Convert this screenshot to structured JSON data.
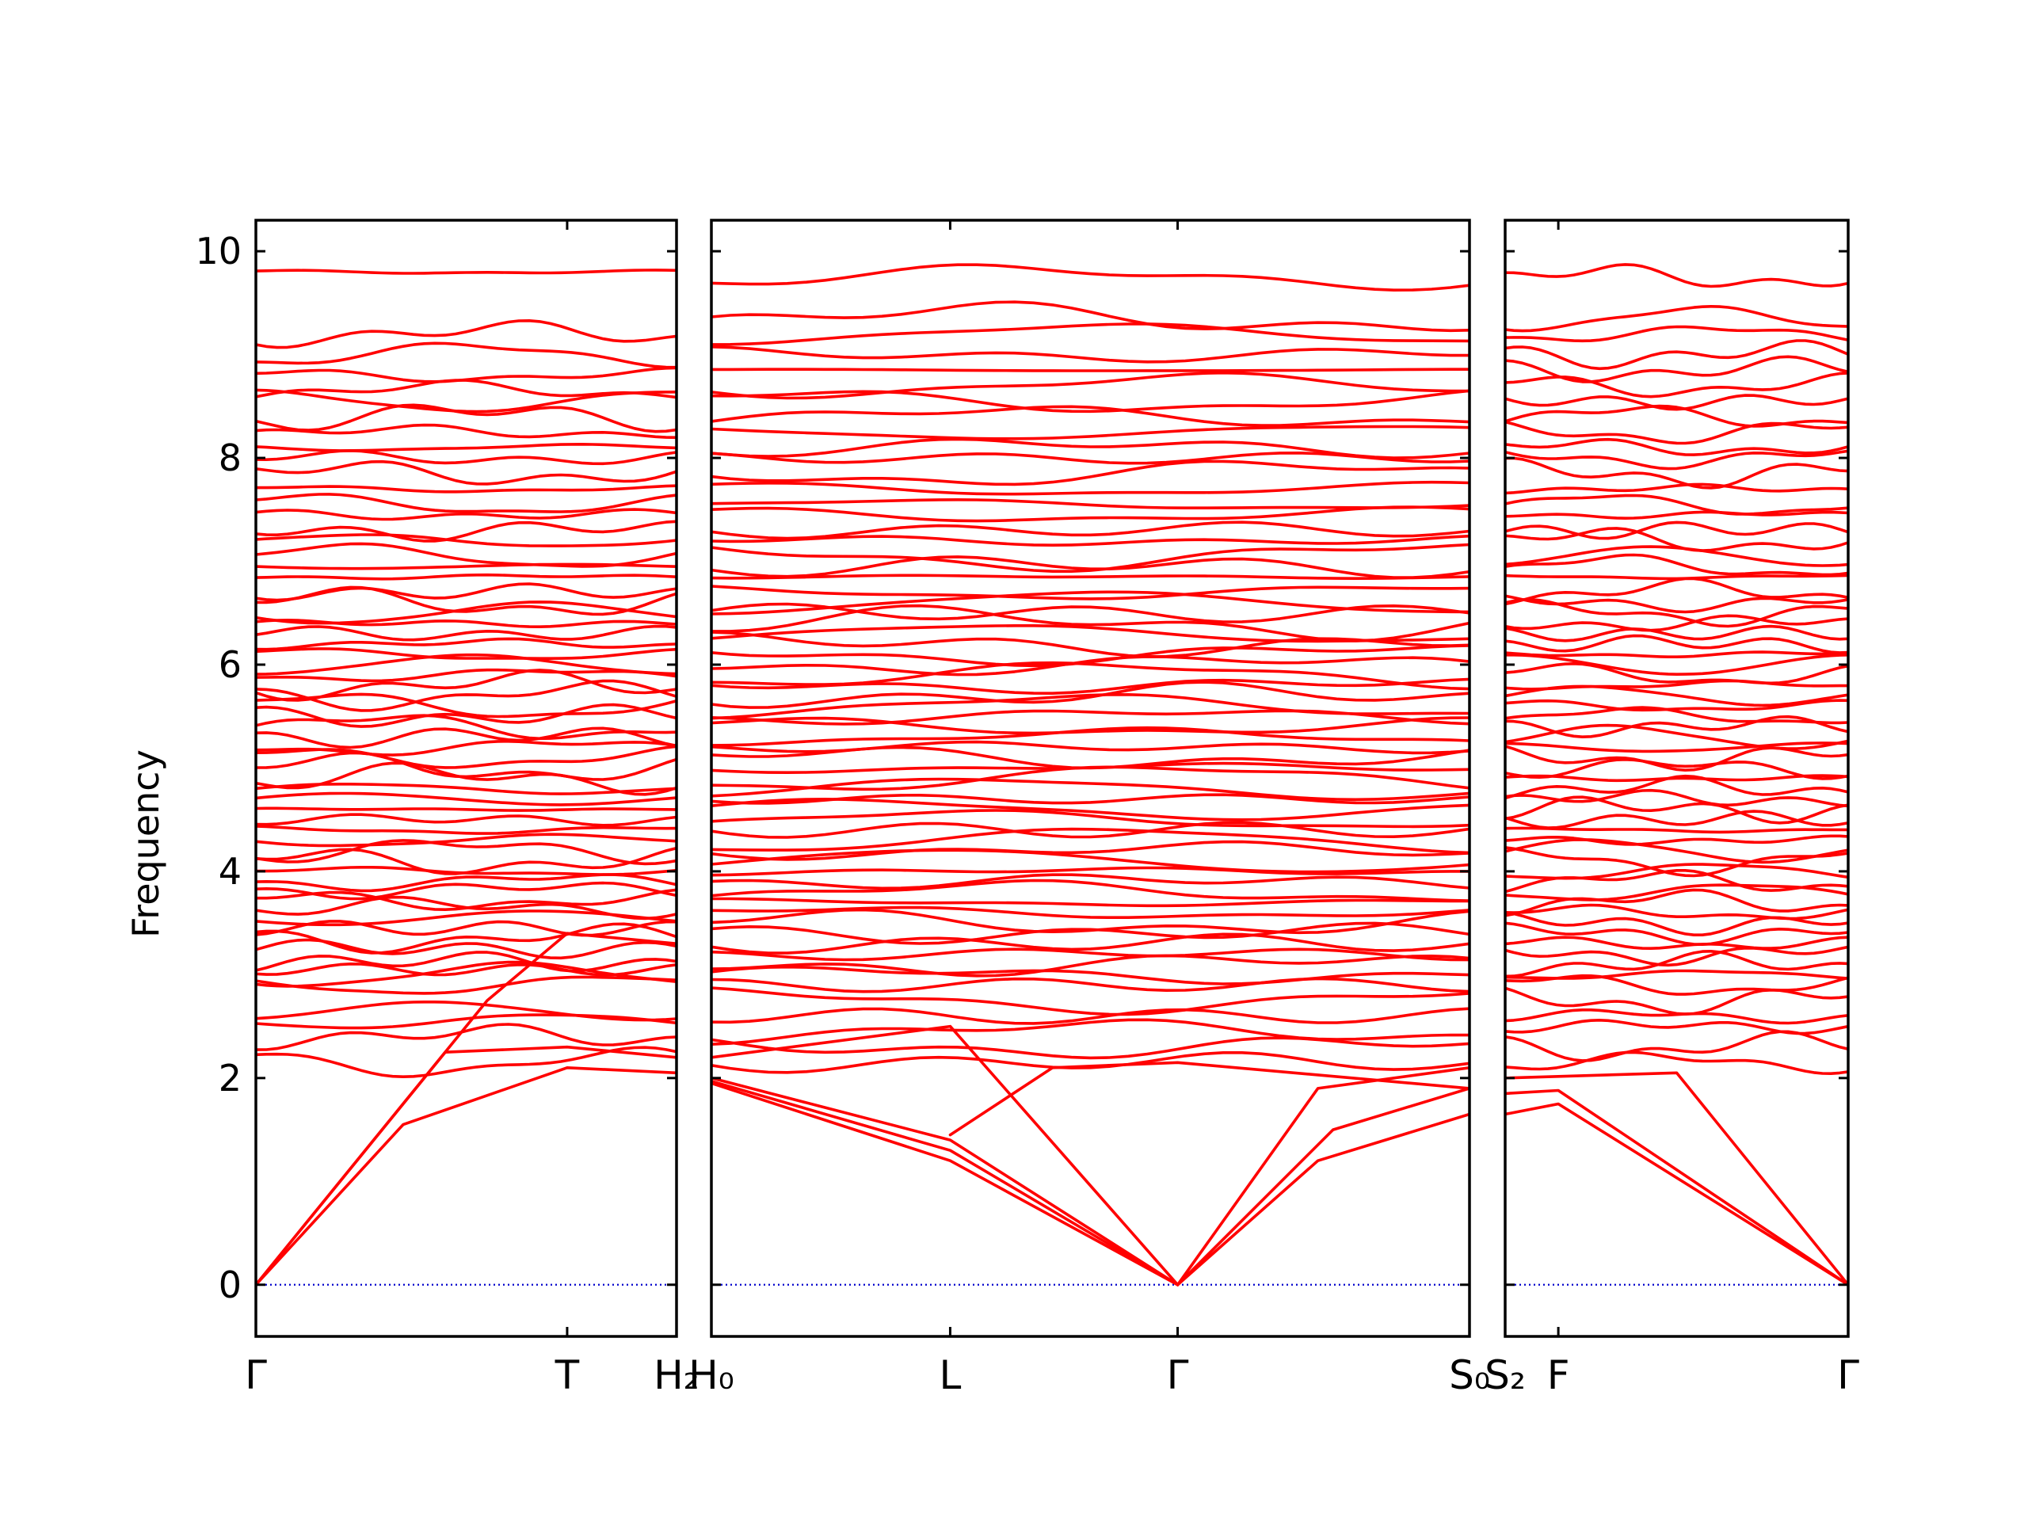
{
  "chart_data": {
    "type": "line",
    "ylabel": "Frequency",
    "ylim": [
      -0.5,
      10.3
    ],
    "yticks": [
      0,
      2,
      4,
      6,
      8,
      10
    ],
    "band_color": "#ff0000",
    "zero_line_color": "#0000cc",
    "grid": false,
    "panels": [
      {
        "labels": [
          "Γ",
          "T",
          "H₂"
        ],
        "label_pos": [
          0,
          0.74,
          1.0
        ],
        "path": [
          "Γ",
          "T",
          "H2"
        ],
        "acoustic": [
          [
            [
              0,
              0
            ],
            [
              0.35,
              1.55
            ],
            [
              0.74,
              2.1
            ],
            [
              1.0,
              2.05
            ]
          ],
          [
            [
              0,
              0
            ],
            [
              0.45,
              2.25
            ],
            [
              0.74,
              2.3
            ],
            [
              1.0,
              2.2
            ]
          ],
          [
            [
              0,
              0
            ],
            [
              0.55,
              2.75
            ],
            [
              0.74,
              3.4
            ],
            [
              1.0,
              3.3
            ]
          ]
        ],
        "optical_levels": [
          2.15,
          2.4,
          2.55,
          2.65,
          2.9,
          3.0,
          3.05,
          3.12,
          3.25,
          3.35,
          3.45,
          3.55,
          3.65,
          3.72,
          3.82,
          3.9,
          4.0,
          4.1,
          4.2,
          4.3,
          4.4,
          4.5,
          4.6,
          4.7,
          4.8,
          4.9,
          5.0,
          5.1,
          5.2,
          5.3,
          5.4,
          5.5,
          5.6,
          5.7,
          5.8,
          5.9,
          6.0,
          6.1,
          6.2,
          6.3,
          6.4,
          6.5,
          6.6,
          6.7,
          6.85,
          6.95,
          7.05,
          7.2,
          7.3,
          7.45,
          7.55,
          7.7,
          7.85,
          8.0,
          8.1,
          8.25,
          8.4,
          8.55,
          8.65,
          8.8,
          9.0,
          9.2,
          9.8
        ]
      },
      {
        "labels": [
          "H₀",
          "L",
          "Γ",
          "S₀"
        ],
        "label_pos": [
          0,
          0.315,
          0.615,
          1.0
        ],
        "path": [
          "H0",
          "L",
          "Γ",
          "S0"
        ],
        "acoustic": [
          [
            [
              0,
              1.95
            ],
            [
              0.315,
              1.2
            ],
            [
              0.615,
              0
            ]
          ],
          [
            [
              0,
              1.97
            ],
            [
              0.315,
              1.3
            ],
            [
              0.615,
              0
            ]
          ],
          [
            [
              0,
              2.0
            ],
            [
              0.315,
              1.4
            ],
            [
              0.615,
              0
            ]
          ],
          [
            [
              0,
              2.2
            ],
            [
              0.315,
              2.5
            ],
            [
              0.615,
              0
            ]
          ],
          [
            [
              0.315,
              1.45
            ],
            [
              0.45,
              2.1
            ],
            [
              0.615,
              2.15
            ],
            [
              1.0,
              1.9
            ]
          ],
          [
            [
              0.615,
              0
            ],
            [
              0.8,
              1.2
            ],
            [
              1.0,
              1.65
            ]
          ],
          [
            [
              0.615,
              0
            ],
            [
              0.82,
              1.5
            ],
            [
              1.0,
              1.9
            ]
          ],
          [
            [
              0.615,
              0
            ],
            [
              0.8,
              1.9
            ],
            [
              1.0,
              2.1
            ]
          ]
        ],
        "optical_levels": [
          2.15,
          2.3,
          2.45,
          2.6,
          2.75,
          2.9,
          3.0,
          3.1,
          3.2,
          3.3,
          3.4,
          3.5,
          3.6,
          3.7,
          3.8,
          3.9,
          4.0,
          4.1,
          4.2,
          4.3,
          4.4,
          4.5,
          4.6,
          4.7,
          4.8,
          4.9,
          5.0,
          5.1,
          5.2,
          5.3,
          5.4,
          5.5,
          5.6,
          5.7,
          5.8,
          5.9,
          6.0,
          6.1,
          6.2,
          6.3,
          6.4,
          6.5,
          6.6,
          6.7,
          6.85,
          6.95,
          7.05,
          7.2,
          7.3,
          7.45,
          7.55,
          7.7,
          7.85,
          8.0,
          8.1,
          8.25,
          8.4,
          8.55,
          8.7,
          8.85,
          9.0,
          9.2,
          9.35,
          9.75
        ]
      },
      {
        "labels": [
          "S₂",
          "F",
          "Γ"
        ],
        "label_pos": [
          0,
          0.155,
          1.0
        ],
        "path": [
          "S2",
          "F",
          "Γ"
        ],
        "acoustic": [
          [
            [
              0,
              1.65
            ],
            [
              0.155,
              1.75
            ],
            [
              1.0,
              0
            ]
          ],
          [
            [
              0,
              1.85
            ],
            [
              0.155,
              1.88
            ],
            [
              1.0,
              0
            ]
          ],
          [
            [
              0,
              2.0
            ],
            [
              0.5,
              2.05
            ],
            [
              1.0,
              0
            ]
          ]
        ],
        "optical_levels": [
          2.15,
          2.3,
          2.5,
          2.6,
          2.75,
          2.9,
          3.0,
          3.1,
          3.2,
          3.3,
          3.4,
          3.5,
          3.6,
          3.7,
          3.8,
          3.9,
          4.0,
          4.1,
          4.2,
          4.3,
          4.4,
          4.5,
          4.6,
          4.7,
          4.8,
          4.9,
          5.0,
          5.1,
          5.2,
          5.3,
          5.4,
          5.5,
          5.6,
          5.7,
          5.8,
          5.9,
          6.0,
          6.1,
          6.2,
          6.3,
          6.4,
          6.5,
          6.6,
          6.7,
          6.85,
          6.95,
          7.05,
          7.2,
          7.3,
          7.45,
          7.55,
          7.7,
          7.85,
          8.0,
          8.1,
          8.25,
          8.4,
          8.55,
          8.7,
          8.85,
          9.0,
          9.2,
          9.35,
          9.75
        ]
      }
    ]
  }
}
